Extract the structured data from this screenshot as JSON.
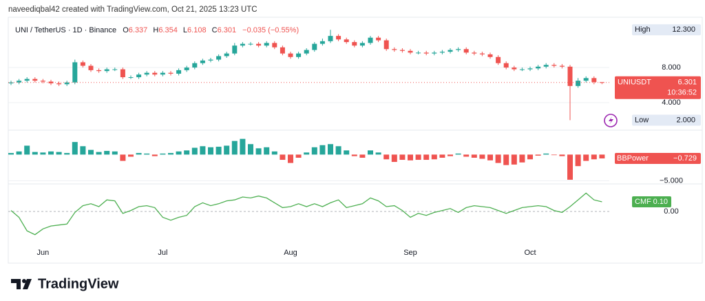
{
  "header": {
    "caption": "naveediqbal42 created with TradingView.com, Oct 21, 2025 13:23 UTC",
    "symbol": "UNI / TetherUS · 1D · Binance",
    "ohlc_labels": [
      "O",
      "H",
      "L",
      "C"
    ],
    "change": "−0.035 (−0.55%)"
  },
  "chart_data": [
    {
      "type": "candlestick",
      "name": "UNIUSDT",
      "countdown": "10:36:52",
      "up_color": "#26a69a",
      "down_color": "#ef5350",
      "categories": [
        null,
        null,
        null,
        null,
        "Jun",
        null,
        null,
        null,
        null,
        null,
        null,
        null,
        null,
        null,
        null,
        null,
        null,
        null,
        null,
        "Jul",
        null,
        null,
        null,
        null,
        null,
        null,
        null,
        null,
        null,
        null,
        null,
        null,
        null,
        null,
        null,
        "Aug",
        null,
        null,
        null,
        null,
        null,
        null,
        null,
        null,
        null,
        null,
        null,
        null,
        null,
        null,
        "Sep",
        null,
        null,
        null,
        null,
        null,
        null,
        null,
        null,
        null,
        null,
        null,
        null,
        null,
        null,
        "Oct",
        null,
        null,
        null,
        null,
        null,
        null,
        null,
        null,
        null
      ],
      "open": [
        6.2,
        6.3,
        6.5,
        6.7,
        6.5,
        6.4,
        6.2,
        6.1,
        6.3,
        8.6,
        8.2,
        7.7,
        7.6,
        7.8,
        7.8,
        6.9,
        6.9,
        7.2,
        7.4,
        7.2,
        7.4,
        7.3,
        7.7,
        8.0,
        8.5,
        8.8,
        8.9,
        9.3,
        9.6,
        10.5,
        10.7,
        10.7,
        10.5,
        10.8,
        10.3,
        9.6,
        9.2,
        9.6,
        10.0,
        10.7,
        11.0,
        11.6,
        11.2,
        10.9,
        10.5,
        10.8,
        11.4,
        11.1,
        10.1,
        10.0,
        9.9,
        9.7,
        9.7,
        9.6,
        9.7,
        9.8,
        10.0,
        10.1,
        9.7,
        9.6,
        9.5,
        9.2,
        8.5,
        8.0,
        7.8,
        7.8,
        7.9,
        8.1,
        8.3,
        8.2,
        8.1,
        5.9,
        6.5,
        6.8,
        6.337
      ],
      "high": [
        6.5,
        6.7,
        6.9,
        6.9,
        6.7,
        6.6,
        6.4,
        6.5,
        8.9,
        8.8,
        8.4,
        7.9,
        8.0,
        8.0,
        8.0,
        7.1,
        7.4,
        7.6,
        7.6,
        7.6,
        7.6,
        7.9,
        8.2,
        8.7,
        9.0,
        9.1,
        9.5,
        9.8,
        10.8,
        10.9,
        10.9,
        10.9,
        11.0,
        11.0,
        10.5,
        9.8,
        9.8,
        10.2,
        10.9,
        11.3,
        12.3,
        11.8,
        11.4,
        11.1,
        11.0,
        11.6,
        11.6,
        11.3,
        10.3,
        10.2,
        10.1,
        9.9,
        9.9,
        9.9,
        10.0,
        10.2,
        10.3,
        10.3,
        9.9,
        9.8,
        9.7,
        9.4,
        8.7,
        8.2,
        8.0,
        8.1,
        8.3,
        8.5,
        8.5,
        8.4,
        8.3,
        6.8,
        7.0,
        7.0,
        6.354
      ],
      "low": [
        6.0,
        6.1,
        6.3,
        6.3,
        6.2,
        6.0,
        5.9,
        5.9,
        6.1,
        8.0,
        7.5,
        7.4,
        7.4,
        7.6,
        6.7,
        6.7,
        6.7,
        7.0,
        7.0,
        7.0,
        7.1,
        7.1,
        7.5,
        7.8,
        8.3,
        8.6,
        8.7,
        9.1,
        9.4,
        10.3,
        10.5,
        10.3,
        10.3,
        10.1,
        9.4,
        9.0,
        9.0,
        9.4,
        9.8,
        10.5,
        10.8,
        11.0,
        10.7,
        10.3,
        10.3,
        10.6,
        10.9,
        9.9,
        9.8,
        9.7,
        9.5,
        9.5,
        9.4,
        9.4,
        9.5,
        9.6,
        9.8,
        9.5,
        9.4,
        9.3,
        9.0,
        8.3,
        7.8,
        7.6,
        7.6,
        7.6,
        7.7,
        7.9,
        8.0,
        7.9,
        2.0,
        5.7,
        6.3,
        6.1,
        6.108
      ],
      "close": [
        6.3,
        6.5,
        6.7,
        6.5,
        6.4,
        6.2,
        6.1,
        6.3,
        8.6,
        8.2,
        7.7,
        7.6,
        7.8,
        7.8,
        6.9,
        6.9,
        7.2,
        7.4,
        7.2,
        7.4,
        7.3,
        7.7,
        8.0,
        8.5,
        8.8,
        8.9,
        9.3,
        9.6,
        10.5,
        10.7,
        10.7,
        10.5,
        10.8,
        10.3,
        9.6,
        9.2,
        9.6,
        10.0,
        10.7,
        11.0,
        11.6,
        11.2,
        10.9,
        10.5,
        10.8,
        11.4,
        11.1,
        10.1,
        10.0,
        9.9,
        9.7,
        9.7,
        9.6,
        9.7,
        9.8,
        10.0,
        10.1,
        9.7,
        9.6,
        9.5,
        9.2,
        8.5,
        8.0,
        7.8,
        7.8,
        7.9,
        8.1,
        8.3,
        8.2,
        8.1,
        5.9,
        6.5,
        6.8,
        6.34,
        6.301
      ],
      "ylim": [
        1.18,
        13.73
      ],
      "yticks": [
        {
          "value": 4,
          "label": "4.000"
        },
        {
          "value": 8,
          "label": "8.000"
        }
      ],
      "markers": [
        {
          "name": "High",
          "value": 12.3,
          "label": "12.300"
        },
        {
          "name": "Low",
          "value": 2,
          "label": "2.000"
        }
      ]
    },
    {
      "type": "bar",
      "name": "BBPower",
      "up_color": "#26a69a",
      "down_color": "#ef5350",
      "values": [
        0.3,
        0.6,
        1.7,
        0.5,
        0.4,
        0.6,
        0.5,
        0.3,
        2.4,
        1.6,
        0.9,
        0.5,
        0.7,
        0.6,
        -1.2,
        -0.4,
        0.3,
        0.2,
        -0.3,
        0.2,
        0.3,
        0.6,
        0.8,
        1.3,
        1.6,
        1.4,
        1.5,
        1.7,
        2.6,
        3.0,
        2.0,
        1.2,
        1.4,
        0.6,
        -1.0,
        -1.6,
        -0.6,
        0.4,
        1.4,
        1.8,
        2.0,
        1.6,
        0.8,
        -0.3,
        -0.6,
        0.8,
        0.4,
        -0.9,
        -1.4,
        -1.0,
        -1.1,
        -1.0,
        -1.0,
        -0.9,
        -0.6,
        -0.3,
        0.2,
        -0.4,
        -0.6,
        -0.8,
        -1.1,
        -1.6,
        -2.0,
        -1.9,
        -1.5,
        -0.9,
        -0.2,
        0.2,
        -0.1,
        -0.3,
        -4.8,
        -2.2,
        -1.2,
        -0.9,
        -0.729
      ],
      "last_value": {
        "value": -0.729,
        "label": "−0.729"
      },
      "ylim": [
        -5.2,
        4.0
      ],
      "yticks": [
        {
          "value": -5,
          "label": "−5.000"
        }
      ]
    },
    {
      "type": "line",
      "name": "CMF",
      "color": "#4caf50",
      "values": [
        0.01,
        -0.06,
        -0.2,
        -0.24,
        -0.18,
        -0.15,
        -0.14,
        -0.13,
        -0.01,
        0.06,
        0.08,
        0.05,
        0.12,
        0.11,
        -0.02,
        0.01,
        0.05,
        0.06,
        0.04,
        -0.06,
        -0.09,
        -0.06,
        -0.04,
        0.05,
        0.09,
        0.06,
        0.08,
        0.11,
        0.12,
        0.15,
        0.14,
        0.16,
        0.14,
        0.09,
        0.04,
        0.05,
        0.08,
        0.05,
        0.08,
        0.05,
        0.09,
        0.12,
        0.04,
        0.06,
        0.08,
        0.14,
        0.11,
        0.05,
        0.06,
        0.01,
        -0.06,
        -0.02,
        -0.04,
        -0.01,
        0.01,
        0.03,
        -0.01,
        0.04,
        0.06,
        0.05,
        0.04,
        0.01,
        -0.02,
        0.01,
        0.04,
        0.05,
        0.06,
        0.05,
        0.01,
        -0.01,
        0.05,
        0.12,
        0.19,
        0.12,
        0.1
      ],
      "last_value": {
        "value": 0.1,
        "label": "0.10"
      },
      "ylim": [
        -0.52,
        0.264
      ],
      "yticks": [
        {
          "value": 0,
          "label": "0.00"
        }
      ]
    }
  ],
  "footer": {
    "brand": "TradingView"
  }
}
